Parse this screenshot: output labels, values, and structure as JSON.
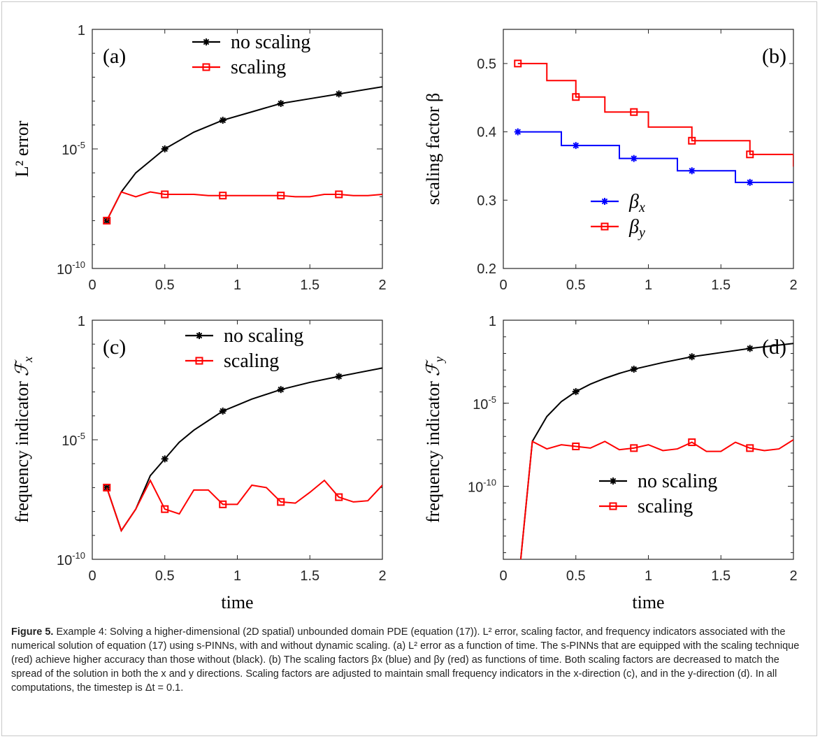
{
  "chart_data": [
    {
      "type": "line",
      "panel_label": "(a)",
      "xlabel": "",
      "ylabel": "L² error",
      "yscale": "log",
      "xlim": [
        0,
        2
      ],
      "ylim_exp": [
        -10,
        0
      ],
      "xticks": [
        0,
        0.5,
        1,
        1.5,
        2
      ],
      "xtick_labels": [
        "0",
        "0.5",
        "1",
        "1.5",
        "2"
      ],
      "ytick_exps": [
        -10,
        -5,
        0
      ],
      "ytick_labels": [
        [
          "10",
          "-10"
        ],
        [
          "10",
          "-5"
        ],
        [
          "1",
          ""
        ]
      ],
      "legend_position": "top",
      "series": [
        {
          "name": "no scaling",
          "color": "#000000",
          "marker": "star",
          "x": [
            0.1,
            0.2,
            0.3,
            0.4,
            0.5,
            0.7,
            0.9,
            1.1,
            1.3,
            1.5,
            1.7,
            2.0
          ],
          "y_exp": [
            -8.0,
            -6.8,
            -6.0,
            -5.5,
            -5.0,
            -4.3,
            -3.8,
            -3.45,
            -3.1,
            -2.9,
            -2.7,
            -2.4
          ],
          "marker_x": [
            0.1,
            0.5,
            0.9,
            1.3,
            1.7
          ]
        },
        {
          "name": "scaling",
          "color": "#ff0000",
          "marker": "square",
          "x": [
            0.1,
            0.2,
            0.3,
            0.4,
            0.5,
            0.6,
            0.7,
            0.8,
            0.9,
            1.0,
            1.1,
            1.2,
            1.3,
            1.4,
            1.5,
            1.6,
            1.7,
            1.8,
            1.9,
            2.0
          ],
          "y_exp": [
            -8.0,
            -6.8,
            -7.0,
            -6.8,
            -6.9,
            -6.9,
            -6.9,
            -6.95,
            -6.95,
            -6.95,
            -6.95,
            -6.95,
            -6.95,
            -7.0,
            -7.0,
            -6.9,
            -6.9,
            -6.95,
            -6.95,
            -6.9
          ],
          "marker_x": [
            0.1,
            0.5,
            0.9,
            1.3,
            1.7
          ]
        }
      ]
    },
    {
      "type": "line",
      "panel_label": "(b)",
      "xlabel": "",
      "ylabel": "scaling factor β",
      "yscale": "linear",
      "xlim": [
        0,
        2
      ],
      "ylim": [
        0.2,
        0.55
      ],
      "xticks": [
        0,
        0.5,
        1,
        1.5,
        2
      ],
      "xtick_labels": [
        "0",
        "0.5",
        "1",
        "1.5",
        "2"
      ],
      "yticks": [
        0.2,
        0.3,
        0.4,
        0.5
      ],
      "ytick_labels": [
        "0.2",
        "0.3",
        "0.4",
        "0.5"
      ],
      "legend_position": "bottom",
      "series": [
        {
          "name": "βx",
          "name_base": "β",
          "name_sub": "x",
          "color": "#0000ff",
          "marker": "star",
          "step": true,
          "x": [
            0.1,
            0.2,
            0.3,
            0.4,
            0.5,
            0.6,
            0.7,
            0.8,
            0.9,
            1.0,
            1.1,
            1.2,
            1.3,
            1.4,
            1.5,
            1.6,
            1.7,
            1.8,
            1.9,
            2.0
          ],
          "y": [
            0.4,
            0.4,
            0.4,
            0.38,
            0.38,
            0.38,
            0.38,
            0.361,
            0.361,
            0.361,
            0.361,
            0.343,
            0.343,
            0.343,
            0.343,
            0.326,
            0.326,
            0.326,
            0.326,
            0.326
          ],
          "marker_x": [
            0.1,
            0.5,
            0.9,
            1.3,
            1.7
          ]
        },
        {
          "name": "βy",
          "name_base": "β",
          "name_sub": "y",
          "color": "#ff0000",
          "marker": "square",
          "step": true,
          "x": [
            0.1,
            0.2,
            0.3,
            0.4,
            0.5,
            0.6,
            0.7,
            0.8,
            0.9,
            1.0,
            1.1,
            1.2,
            1.3,
            1.4,
            1.5,
            1.6,
            1.7,
            1.8,
            1.9,
            2.0
          ],
          "y": [
            0.5,
            0.5,
            0.475,
            0.475,
            0.451,
            0.451,
            0.429,
            0.429,
            0.429,
            0.407,
            0.407,
            0.407,
            0.387,
            0.387,
            0.387,
            0.387,
            0.367,
            0.367,
            0.367,
            0.349
          ],
          "marker_x": [
            0.1,
            0.5,
            0.9,
            1.3,
            1.7
          ]
        }
      ]
    },
    {
      "type": "line",
      "panel_label": "(c)",
      "xlabel": "time",
      "ylabel": "frequency indicator",
      "ylabel_symbol": "ℱ",
      "ylabel_sub": "x",
      "yscale": "log",
      "xlim": [
        0,
        2
      ],
      "ylim_exp": [
        -10,
        0
      ],
      "xticks": [
        0,
        0.5,
        1,
        1.5,
        2
      ],
      "xtick_labels": [
        "0",
        "0.5",
        "1",
        "1.5",
        "2"
      ],
      "ytick_exps": [
        -10,
        -5,
        0
      ],
      "ytick_labels": [
        [
          "10",
          "-10"
        ],
        [
          "10",
          "-5"
        ],
        [
          "1",
          ""
        ]
      ],
      "legend_position": "top",
      "series": [
        {
          "name": "no scaling",
          "color": "#000000",
          "marker": "star",
          "x": [
            0.1,
            0.2,
            0.3,
            0.4,
            0.5,
            0.6,
            0.7,
            0.8,
            0.9,
            1.0,
            1.1,
            1.3,
            1.5,
            1.7,
            2.0
          ],
          "y_exp": [
            -7.0,
            -8.8,
            -7.9,
            -6.5,
            -5.8,
            -5.1,
            -4.6,
            -4.2,
            -3.8,
            -3.55,
            -3.3,
            -2.9,
            -2.6,
            -2.35,
            -2.0
          ],
          "marker_x": [
            0.1,
            0.5,
            0.9,
            1.3,
            1.7
          ]
        },
        {
          "name": "scaling",
          "color": "#ff0000",
          "marker": "square",
          "x": [
            0.1,
            0.2,
            0.3,
            0.4,
            0.5,
            0.6,
            0.7,
            0.8,
            0.9,
            1.0,
            1.1,
            1.2,
            1.3,
            1.4,
            1.5,
            1.6,
            1.7,
            1.8,
            1.9,
            2.0
          ],
          "y_exp": [
            -7.0,
            -8.8,
            -7.9,
            -6.7,
            -7.9,
            -8.1,
            -7.1,
            -7.1,
            -7.7,
            -7.7,
            -6.9,
            -7.0,
            -7.6,
            -7.65,
            -7.2,
            -6.7,
            -7.4,
            -7.6,
            -7.55,
            -6.9
          ],
          "marker_x": [
            0.1,
            0.5,
            0.9,
            1.3,
            1.7
          ]
        }
      ]
    },
    {
      "type": "line",
      "panel_label": "(d)",
      "xlabel": "time",
      "ylabel": "frequency indicator",
      "ylabel_symbol": "ℱ",
      "ylabel_sub": "y",
      "yscale": "log",
      "xlim": [
        0,
        2
      ],
      "ylim_exp": [
        -14.4,
        0
      ],
      "xticks": [
        0,
        0.5,
        1,
        1.5,
        2
      ],
      "xtick_labels": [
        "0",
        "0.5",
        "1",
        "1.5",
        "2"
      ],
      "ytick_exps": [
        -10,
        -5,
        0
      ],
      "ytick_labels": [
        [
          "10",
          "-10"
        ],
        [
          "10",
          "-5"
        ],
        [
          "1",
          ""
        ]
      ],
      "legend_position": "bottom-right",
      "series": [
        {
          "name": "no scaling",
          "color": "#000000",
          "marker": "star",
          "x": [
            0.12,
            0.2,
            0.3,
            0.4,
            0.5,
            0.6,
            0.7,
            0.8,
            0.9,
            1.0,
            1.1,
            1.3,
            1.5,
            1.7,
            2.0
          ],
          "y_exp": [
            -14.4,
            -7.3,
            -5.8,
            -4.9,
            -4.3,
            -3.85,
            -3.5,
            -3.2,
            -2.95,
            -2.75,
            -2.55,
            -2.2,
            -1.95,
            -1.7,
            -1.4
          ],
          "marker_x": [
            0.5,
            0.9,
            1.3,
            1.7
          ]
        },
        {
          "name": "scaling",
          "color": "#ff0000",
          "marker": "square",
          "x": [
            0.12,
            0.2,
            0.3,
            0.4,
            0.5,
            0.6,
            0.7,
            0.8,
            0.9,
            1.0,
            1.1,
            1.2,
            1.3,
            1.4,
            1.5,
            1.6,
            1.7,
            1.8,
            1.9,
            2.0
          ],
          "y_exp": [
            -14.4,
            -7.3,
            -7.75,
            -7.5,
            -7.6,
            -7.7,
            -7.3,
            -7.8,
            -7.7,
            -7.5,
            -7.85,
            -7.75,
            -7.35,
            -7.9,
            -7.9,
            -7.35,
            -7.7,
            -7.85,
            -7.75,
            -7.2
          ],
          "marker_x": [
            0.5,
            0.9,
            1.3,
            1.7
          ]
        }
      ]
    }
  ],
  "caption": {
    "lead": "Figure 5.",
    "text": "Example 4: Solving a higher-dimensional (2D spatial) unbounded domain PDE (equation (17)). L² error, scaling factor, and frequency indicators associated with the numerical solution of equation (17) using s-PINNs, with and without dynamic scaling. (a) L² error as a function of time. The s-PINNs that are equipped with the scaling technique (red) achieve higher accuracy than those without (black). (b) The scaling factors βx (blue) and βy (red) as functions of time. Both scaling factors are decreased to match the spread of the solution in both the x and y directions. Scaling factors are adjusted to maintain small frequency indicators in the x-direction (c), and in the y-direction (d). In all computations, the timestep is Δt = 0.1."
  }
}
